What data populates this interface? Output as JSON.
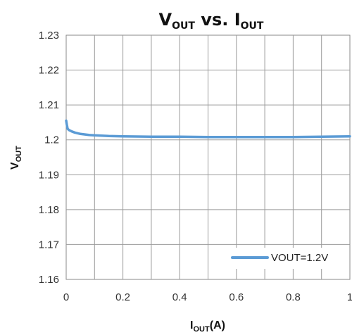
{
  "chart_data": {
    "type": "line",
    "title": {
      "main1": "V",
      "sub1": "OUT",
      "mid": " vs. I",
      "sub2": "OUT"
    },
    "xlabel": {
      "main": "I",
      "sub": "OUT",
      "rest": "(A)"
    },
    "ylabel": {
      "main": "V",
      "sub": "OUT"
    },
    "xlim": [
      0,
      1
    ],
    "ylim": [
      1.16,
      1.23
    ],
    "x_ticks": [
      0,
      0.2,
      0.4,
      0.6,
      0.8,
      1
    ],
    "x_tick_labels": [
      "0",
      "0.2",
      "0.4",
      "0.6",
      "0.8",
      "1"
    ],
    "y_ticks": [
      1.16,
      1.17,
      1.18,
      1.19,
      1.2,
      1.21,
      1.22,
      1.23
    ],
    "y_tick_labels": [
      "1.16",
      "1.17",
      "1.18",
      "1.19",
      "1.2",
      "1.21",
      "1.22",
      "1.23"
    ],
    "x_minor_step": 0.1,
    "grid": true,
    "legend_position": "bottom-right",
    "series": [
      {
        "name": "VOUT=1.2V",
        "color": "#5b9bd5",
        "x": [
          0,
          0.002,
          0.005,
          0.01,
          0.02,
          0.03,
          0.05,
          0.08,
          0.1,
          0.15,
          0.2,
          0.3,
          0.4,
          0.5,
          0.6,
          0.7,
          0.8,
          0.9,
          1.0
        ],
        "y": [
          1.2055,
          1.2045,
          1.2032,
          1.2028,
          1.2024,
          1.2021,
          1.2017,
          1.2014,
          1.2013,
          1.2011,
          1.201,
          1.2009,
          1.2009,
          1.2008,
          1.2008,
          1.2008,
          1.2008,
          1.2009,
          1.201
        ]
      }
    ]
  }
}
